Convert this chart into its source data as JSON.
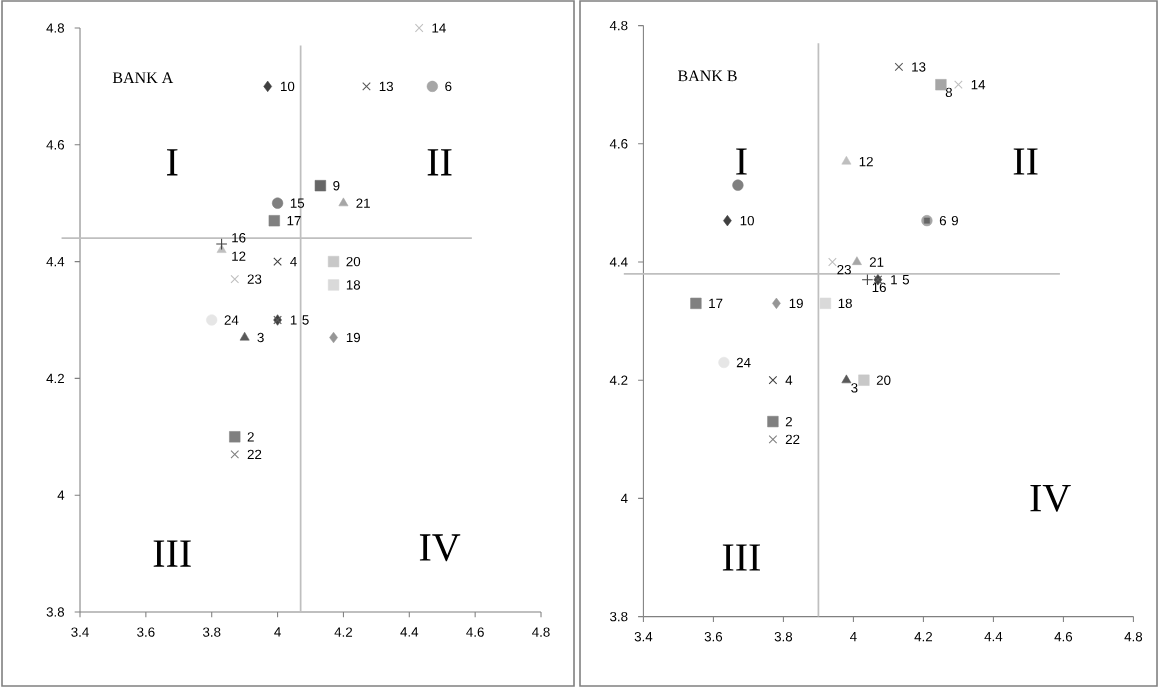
{
  "chart_data": [
    {
      "type": "scatter",
      "title": "BANK A",
      "xlim": [
        3.4,
        4.8
      ],
      "ylim": [
        3.8,
        4.8
      ],
      "xticks": [
        3.4,
        3.6,
        3.8,
        4,
        4.2,
        4.4,
        4.6,
        4.8
      ],
      "yticks": [
        3.8,
        4,
        4.2,
        4.4,
        4.6,
        4.8
      ],
      "grid": false,
      "ref_lines": [
        {
          "axis": "x",
          "value": 4.07,
          "color": "#bfbfbf"
        },
        {
          "axis": "y",
          "value": 4.44,
          "color": "#bfbfbf"
        }
      ],
      "annotations": [
        "I",
        "II",
        "III",
        "IV"
      ],
      "series": [
        {
          "name": "1",
          "color": "#404040",
          "marker": "diamond",
          "x": [
            4.0
          ],
          "values": [
            4.3
          ]
        },
        {
          "name": "2",
          "color": "#808080",
          "marker": "square",
          "x": [
            3.87
          ],
          "values": [
            4.1
          ]
        },
        {
          "name": "3",
          "color": "#595959",
          "marker": "triangle",
          "x": [
            3.9
          ],
          "values": [
            4.27
          ]
        },
        {
          "name": "4",
          "color": "#404040",
          "marker": "cross",
          "x": [
            4.0
          ],
          "values": [
            4.4
          ]
        },
        {
          "name": "5",
          "color": "#595959",
          "marker": "cross",
          "x": [
            4.0
          ],
          "values": [
            4.3
          ]
        },
        {
          "name": "6",
          "color": "#a6a6a6",
          "marker": "circle",
          "x": [
            4.47
          ],
          "values": [
            4.7
          ]
        },
        {
          "name": "9",
          "color": "#666666",
          "marker": "square",
          "x": [
            4.13
          ],
          "values": [
            4.53
          ]
        },
        {
          "name": "10",
          "color": "#404040",
          "marker": "diamond",
          "x": [
            3.97
          ],
          "values": [
            4.7
          ]
        },
        {
          "name": "12",
          "color": "#bfbfbf",
          "marker": "triangle",
          "x": [
            3.83
          ],
          "values": [
            4.42
          ]
        },
        {
          "name": "13",
          "color": "#595959",
          "marker": "cross",
          "x": [
            4.27
          ],
          "values": [
            4.7
          ]
        },
        {
          "name": "14",
          "color": "#bfbfbf",
          "marker": "cross",
          "x": [
            4.43
          ],
          "values": [
            4.8
          ]
        },
        {
          "name": "15",
          "color": "#808080",
          "marker": "circle",
          "x": [
            4.0
          ],
          "values": [
            4.5
          ]
        },
        {
          "name": "16",
          "color": "#404040",
          "marker": "plus",
          "x": [
            3.83
          ],
          "values": [
            4.43
          ]
        },
        {
          "name": "17",
          "color": "#808080",
          "marker": "square",
          "x": [
            3.99
          ],
          "values": [
            4.47
          ]
        },
        {
          "name": "18",
          "color": "#d9d9d9",
          "marker": "square",
          "x": [
            4.17
          ],
          "values": [
            4.36
          ]
        },
        {
          "name": "19",
          "color": "#969696",
          "marker": "diamond",
          "x": [
            4.17
          ],
          "values": [
            4.27
          ]
        },
        {
          "name": "20",
          "color": "#c8c8c8",
          "marker": "square",
          "x": [
            4.17
          ],
          "values": [
            4.4
          ]
        },
        {
          "name": "21",
          "color": "#a6a6a6",
          "marker": "triangle",
          "x": [
            4.2
          ],
          "values": [
            4.5
          ]
        },
        {
          "name": "22",
          "color": "#808080",
          "marker": "cross",
          "x": [
            3.87
          ],
          "values": [
            4.07
          ]
        },
        {
          "name": "23",
          "color": "#bfbfbf",
          "marker": "cross",
          "x": [
            3.87
          ],
          "values": [
            4.37
          ]
        },
        {
          "name": "24",
          "color": "#e6e6e6",
          "marker": "circle",
          "x": [
            3.8
          ],
          "values": [
            4.3
          ]
        }
      ]
    },
    {
      "type": "scatter",
      "title": "BANK B",
      "xlim": [
        3.4,
        4.8
      ],
      "ylim": [
        3.8,
        4.8
      ],
      "xticks": [
        3.4,
        3.6,
        3.8,
        4,
        4.2,
        4.4,
        4.6,
        4.8
      ],
      "yticks": [
        3.8,
        4,
        4.2,
        4.4,
        4.6,
        4.8
      ],
      "grid": false,
      "ref_lines": [
        {
          "axis": "x",
          "value": 3.9,
          "color": "#bfbfbf"
        },
        {
          "axis": "y",
          "value": 4.38,
          "color": "#bfbfbf"
        }
      ],
      "annotations": [
        "I",
        "II",
        "III",
        "IV"
      ],
      "series": [
        {
          "name": "1",
          "color": "#404040",
          "marker": "diamond",
          "x": [
            4.07
          ],
          "values": [
            4.37
          ]
        },
        {
          "name": "2",
          "color": "#808080",
          "marker": "square",
          "x": [
            3.77
          ],
          "values": [
            4.13
          ]
        },
        {
          "name": "3",
          "color": "#595959",
          "marker": "triangle",
          "x": [
            3.98
          ],
          "values": [
            4.2
          ]
        },
        {
          "name": "4",
          "color": "#404040",
          "marker": "cross",
          "x": [
            3.77
          ],
          "values": [
            4.2
          ]
        },
        {
          "name": "5",
          "color": "#595959",
          "marker": "cross",
          "x": [
            4.07
          ],
          "values": [
            4.37
          ]
        },
        {
          "name": "6",
          "color": "#a6a6a6",
          "marker": "circle",
          "x": [
            4.21
          ],
          "values": [
            4.47
          ]
        },
        {
          "name": "8",
          "color": "#a6a6a6",
          "marker": "square",
          "x": [
            4.25
          ],
          "values": [
            4.7
          ]
        },
        {
          "name": "9",
          "color": "#666666",
          "marker": "square",
          "x": [
            4.21
          ],
          "values": [
            4.47
          ]
        },
        {
          "name": "10",
          "color": "#404040",
          "marker": "diamond",
          "x": [
            3.64
          ],
          "values": [
            4.47
          ]
        },
        {
          "name": "12",
          "color": "#bfbfbf",
          "marker": "triangle",
          "x": [
            3.98
          ],
          "values": [
            4.57
          ]
        },
        {
          "name": "13",
          "color": "#595959",
          "marker": "cross",
          "x": [
            4.13
          ],
          "values": [
            4.73
          ]
        },
        {
          "name": "14",
          "color": "#bfbfbf",
          "marker": "cross",
          "x": [
            4.3
          ],
          "values": [
            4.7
          ]
        },
        {
          "color": "#808080",
          "marker": "circle",
          "x": [
            3.67
          ],
          "values": [
            4.53
          ]
        },
        {
          "name": "16",
          "color": "#404040",
          "marker": "plus",
          "x": [
            4.04
          ],
          "values": [
            4.37
          ]
        },
        {
          "name": "17",
          "color": "#808080",
          "marker": "square",
          "x": [
            3.55
          ],
          "values": [
            4.33
          ]
        },
        {
          "name": "18",
          "color": "#d9d9d9",
          "marker": "square",
          "x": [
            3.92
          ],
          "values": [
            4.33
          ]
        },
        {
          "name": "19",
          "color": "#969696",
          "marker": "diamond",
          "x": [
            3.78
          ],
          "values": [
            4.33
          ]
        },
        {
          "name": "20",
          "color": "#c8c8c8",
          "marker": "square",
          "x": [
            4.03
          ],
          "values": [
            4.2
          ]
        },
        {
          "name": "21",
          "color": "#a6a6a6",
          "marker": "triangle",
          "x": [
            4.01
          ],
          "values": [
            4.4
          ]
        },
        {
          "name": "22",
          "color": "#808080",
          "marker": "cross",
          "x": [
            3.77
          ],
          "values": [
            4.1
          ]
        },
        {
          "name": "23",
          "color": "#bfbfbf",
          "marker": "cross",
          "x": [
            3.94
          ],
          "values": [
            4.4
          ]
        },
        {
          "name": "24",
          "color": "#e6e6e6",
          "marker": "circle",
          "x": [
            3.63
          ],
          "values": [
            4.23
          ]
        }
      ]
    }
  ]
}
